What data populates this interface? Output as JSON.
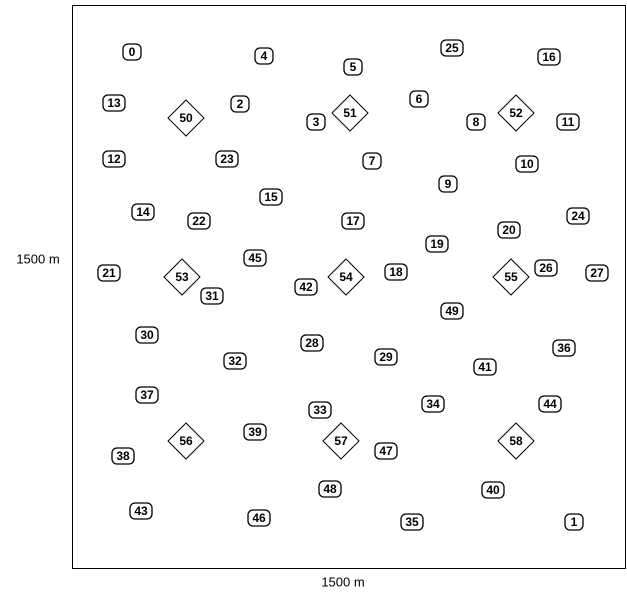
{
  "x_axis_label": "1500 m",
  "y_axis_label": "1500 m",
  "nodes": [
    {
      "label": "0"
    },
    {
      "label": "1"
    },
    {
      "label": "2"
    },
    {
      "label": "3"
    },
    {
      "label": "4"
    },
    {
      "label": "5"
    },
    {
      "label": "6"
    },
    {
      "label": "7"
    },
    {
      "label": "8"
    },
    {
      "label": "9"
    },
    {
      "label": "10"
    },
    {
      "label": "11"
    },
    {
      "label": "12"
    },
    {
      "label": "13"
    },
    {
      "label": "14"
    },
    {
      "label": "15"
    },
    {
      "label": "16"
    },
    {
      "label": "17"
    },
    {
      "label": "18"
    },
    {
      "label": "19"
    },
    {
      "label": "20"
    },
    {
      "label": "21"
    },
    {
      "label": "22"
    },
    {
      "label": "23"
    },
    {
      "label": "24"
    },
    {
      "label": "25"
    },
    {
      "label": "26"
    },
    {
      "label": "27"
    },
    {
      "label": "28"
    },
    {
      "label": "29"
    },
    {
      "label": "30"
    },
    {
      "label": "31"
    },
    {
      "label": "32"
    },
    {
      "label": "33"
    },
    {
      "label": "34"
    },
    {
      "label": "35"
    },
    {
      "label": "36"
    },
    {
      "label": "37"
    },
    {
      "label": "38"
    },
    {
      "label": "39"
    },
    {
      "label": "40"
    },
    {
      "label": "41"
    },
    {
      "label": "42"
    },
    {
      "label": "43"
    },
    {
      "label": "44"
    },
    {
      "label": "45"
    },
    {
      "label": "46"
    },
    {
      "label": "47"
    },
    {
      "label": "48"
    },
    {
      "label": "49"
    },
    {
      "label": "50"
    },
    {
      "label": "51"
    },
    {
      "label": "52"
    },
    {
      "label": "53"
    },
    {
      "label": "54"
    },
    {
      "label": "55"
    },
    {
      "label": "56"
    },
    {
      "label": "57"
    },
    {
      "label": "58"
    }
  ]
}
